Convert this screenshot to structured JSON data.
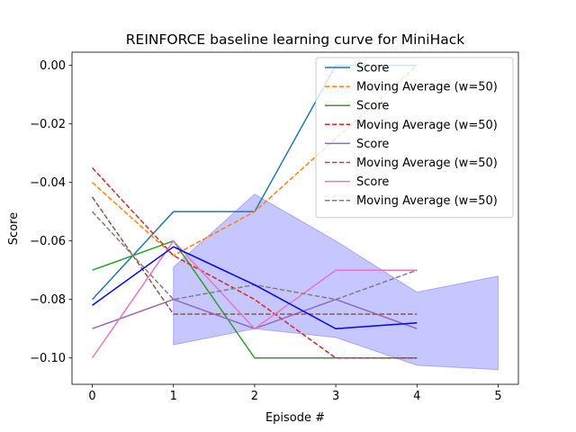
{
  "chart_data": {
    "type": "line",
    "title": "REINFORCE baseline learning curve for MiniHack",
    "xlabel": "Episode #",
    "ylabel": "Score",
    "xlim": [
      -0.25,
      5.25
    ],
    "ylim": [
      -0.109,
      0.0045
    ],
    "x_ticks": [
      "0",
      "1",
      "2",
      "3",
      "4",
      "5"
    ],
    "y_ticks": [
      "0.00",
      "−0.02",
      "−0.04",
      "−0.06",
      "−0.08",
      "−0.10"
    ],
    "y_tick_values": [
      0.0,
      -0.02,
      -0.04,
      -0.06,
      -0.08,
      -0.1
    ],
    "grid": false,
    "legend_placement": "top-right",
    "series": [
      {
        "name": "Score",
        "color": "#1f77b4",
        "dash": false,
        "x": [
          0,
          1,
          2,
          3,
          4
        ],
        "values": [
          -0.08,
          -0.05,
          -0.05,
          0.0,
          0.0
        ]
      },
      {
        "name": "Moving Average (w=50)",
        "color": "#ff7f0e",
        "dash": true,
        "x": [
          0,
          1,
          2,
          3,
          4
        ],
        "values": [
          -0.04,
          -0.065,
          -0.05,
          -0.025,
          0.0
        ]
      },
      {
        "name": "Score",
        "color": "#2ca02c",
        "dash": false,
        "x": [
          0,
          1,
          2,
          3,
          4
        ],
        "values": [
          -0.07,
          -0.06,
          -0.1,
          -0.1,
          -0.1
        ]
      },
      {
        "name": "Moving Average (w=50)",
        "color": "#d62728",
        "dash": true,
        "x": [
          0,
          1,
          2,
          3,
          4
        ],
        "values": [
          -0.035,
          -0.065,
          -0.08,
          -0.1,
          -0.1
        ]
      },
      {
        "name": "Score",
        "color": "#9467bd",
        "dash": false,
        "x": [
          0,
          1,
          2,
          3,
          4
        ],
        "values": [
          -0.09,
          -0.08,
          -0.09,
          -0.08,
          -0.09
        ]
      },
      {
        "name": "Moving Average (w=50)",
        "color": "#8c564b",
        "dash": true,
        "x": [
          0,
          1,
          2,
          3,
          4
        ],
        "values": [
          -0.045,
          -0.085,
          -0.085,
          -0.085,
          -0.085
        ]
      },
      {
        "name": "Score",
        "color": "#e377c2",
        "dash": false,
        "x": [
          0,
          1,
          2,
          3,
          4
        ],
        "values": [
          -0.1,
          -0.06,
          -0.09,
          -0.07,
          -0.07
        ]
      },
      {
        "name": "Moving Average (w=50)",
        "color": "#7f7f7f",
        "dash": true,
        "x": [
          0,
          1,
          2,
          3,
          4
        ],
        "values": [
          -0.05,
          -0.08,
          -0.075,
          -0.08,
          -0.07
        ]
      }
    ],
    "mean_line": {
      "color": "#0000ff",
      "x": [
        0,
        1,
        2,
        3,
        4
      ],
      "values": [
        -0.082,
        -0.062,
        -0.075,
        -0.09,
        -0.088
      ]
    },
    "band": {
      "color": "#0000ff",
      "opacity": 0.22,
      "x": [
        1,
        2,
        3,
        4,
        5
      ],
      "upper": [
        -0.069,
        -0.044,
        -0.06,
        -0.0775,
        -0.072
      ],
      "lower": [
        -0.0955,
        -0.09,
        -0.093,
        -0.1025,
        -0.104
      ]
    }
  }
}
